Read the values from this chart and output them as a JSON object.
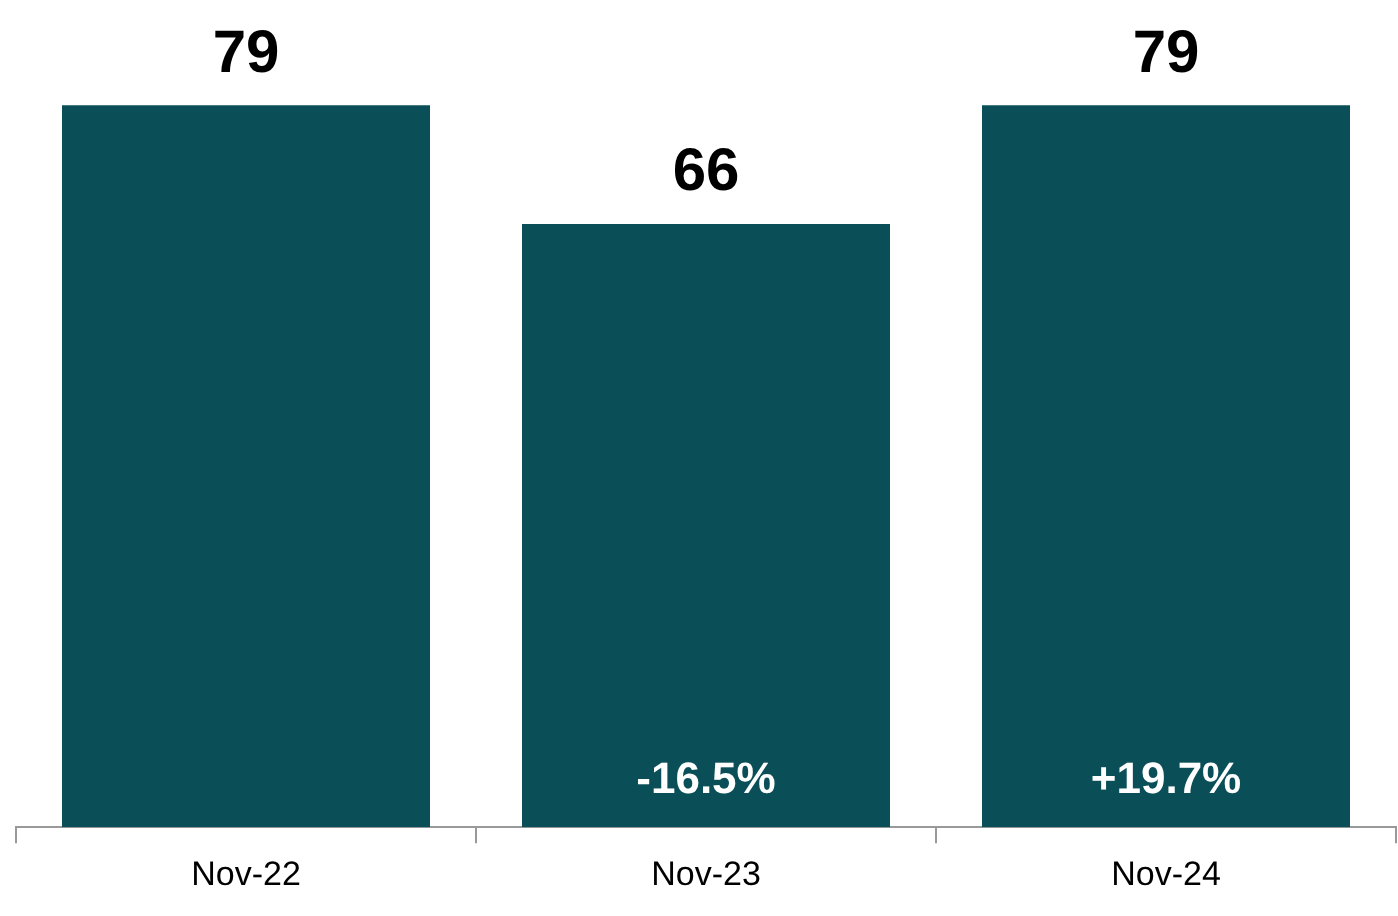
{
  "chart_data": {
    "type": "bar",
    "categories": [
      "Nov-22",
      "Nov-23",
      "Nov-24"
    ],
    "values": [
      79,
      66,
      79
    ],
    "color": "#0a4f58",
    "tick_labels": "x",
    "data_labels": true,
    "grid": false,
    "legend": false,
    "annotations": [
      "-16.5%",
      "+19.7%"
    ]
  }
}
